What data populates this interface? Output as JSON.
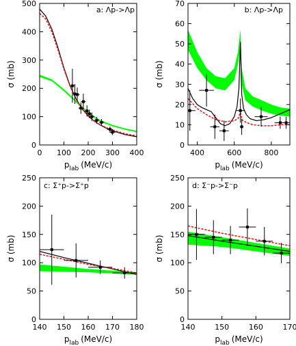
{
  "chart_data": [
    {
      "id": "a",
      "type": "line",
      "label": "a: Λp->Λp",
      "xlabel": "p",
      "xlabel_sub": "lab",
      "xlabel_unit": "(MeV/c)",
      "ylabel": "σ (mb)",
      "xlim": [
        0,
        400
      ],
      "ylim": [
        0,
        500
      ],
      "xticks": [
        0,
        100,
        200,
        300,
        400
      ],
      "yticks": [
        0,
        100,
        200,
        300,
        400,
        500
      ],
      "colors": {
        "band": "#00ff00",
        "model_solid": "#000000",
        "model_dashed": "#ff0000"
      },
      "band": {
        "x": [
          0,
          50,
          100,
          150,
          200,
          250,
          300,
          350,
          400
        ],
        "lower": [
          240,
          225,
          190,
          150,
          110,
          82,
          66,
          54,
          45
        ],
        "upper": [
          248,
          232,
          197,
          157,
          116,
          88,
          71,
          59,
          50
        ]
      },
      "curves": [
        {
          "style": "solid",
          "x": [
            0,
            25,
            50,
            75,
            100,
            125,
            150,
            175,
            200,
            225,
            250,
            275,
            300,
            350,
            400
          ],
          "y": [
            480,
            455,
            410,
            345,
            272,
            210,
            163,
            128,
            103,
            84,
            70,
            59,
            50,
            37,
            29
          ]
        },
        {
          "style": "dashed",
          "x": [
            0,
            25,
            50,
            75,
            100,
            125,
            150,
            175,
            200,
            225,
            250,
            275,
            300,
            350,
            400
          ],
          "y": [
            465,
            445,
            400,
            338,
            268,
            208,
            162,
            127,
            102,
            84,
            71,
            61,
            53,
            40,
            32
          ]
        }
      ],
      "points": [
        {
          "x": 135,
          "y": 209,
          "xerr": 10,
          "yerr": 60
        },
        {
          "x": 145,
          "y": 180,
          "xerr": 10,
          "yerr": 35
        },
        {
          "x": 155,
          "y": 178,
          "xerr": 10,
          "yerr": 25
        },
        {
          "x": 170,
          "y": 130,
          "xerr": 10,
          "yerr": 20
        },
        {
          "x": 180,
          "y": 153,
          "xerr": 10,
          "yerr": 28
        },
        {
          "x": 195,
          "y": 120,
          "xerr": 10,
          "yerr": 20
        },
        {
          "x": 205,
          "y": 110,
          "xerr": 10,
          "yerr": 15
        },
        {
          "x": 215,
          "y": 100,
          "xerr": 10,
          "yerr": 15
        },
        {
          "x": 235,
          "y": 87,
          "xerr": 10,
          "yerr": 12
        },
        {
          "x": 255,
          "y": 80,
          "xerr": 10,
          "yerr": 12
        },
        {
          "x": 290,
          "y": 55,
          "xerr": 12,
          "yerr": 10
        },
        {
          "x": 300,
          "y": 45,
          "xerr": 12,
          "yerr": 10
        }
      ]
    },
    {
      "id": "b",
      "type": "line",
      "label": "b: Λp->Λp",
      "xlabel": "p",
      "xlabel_sub": "lab",
      "xlabel_unit": "(MeV/c)",
      "ylabel": "σ (mb)",
      "xlim": [
        350,
        900
      ],
      "ylim": [
        0,
        70
      ],
      "xticks": [
        400,
        600,
        800
      ],
      "yticks": [
        0,
        10,
        20,
        30,
        40,
        50,
        60,
        70
      ],
      "colors": {
        "band": "#00ff00",
        "model_solid": "#000000",
        "model_dashed": "#ff0000"
      },
      "band": {
        "x": [
          350,
          400,
          450,
          500,
          550,
          600,
          620,
          633,
          640,
          660,
          700,
          750,
          800,
          850,
          900
        ],
        "lower": [
          47,
          38,
          32,
          28,
          27,
          32,
          40,
          48,
          30,
          22,
          19,
          17,
          15.5,
          14.5,
          14
        ],
        "upper": [
          57,
          46,
          38,
          34,
          33,
          38,
          46,
          57,
          38,
          28,
          24,
          22,
          20,
          18.5,
          18
        ]
      },
      "curves": [
        {
          "style": "solid",
          "x": [
            350,
            375,
            400,
            425,
            450,
            475,
            500,
            525,
            550,
            575,
            600,
            615,
            625,
            633,
            640,
            650,
            665,
            685,
            720,
            760,
            800,
            850,
            900
          ],
          "y": [
            28,
            23,
            20,
            18.5,
            17.5,
            16.5,
            13.5,
            10.5,
            9.5,
            10.5,
            14,
            19,
            28,
            51,
            25,
            18,
            15,
            13,
            12,
            12.5,
            13.5,
            15.5,
            17.5
          ]
        },
        {
          "style": "dashed",
          "x": [
            350,
            400,
            450,
            500,
            550,
            600,
            620,
            633,
            645,
            670,
            700,
            750,
            800,
            850,
            900
          ],
          "y": [
            23,
            18,
            15,
            12.5,
            11.5,
            12,
            13,
            16,
            12,
            11,
            10,
            9.5,
            9.5,
            10,
            10
          ]
        }
      ],
      "points": [
        {
          "x": 360,
          "y": 17,
          "xerr": 30,
          "yerr": 10
        },
        {
          "x": 450,
          "y": 27,
          "xerr": 40,
          "yerr": 8
        },
        {
          "x": 495,
          "y": 9,
          "xerr": 25,
          "yerr": 6
        },
        {
          "x": 545,
          "y": 7,
          "xerr": 25,
          "yerr": 5
        },
        {
          "x": 633,
          "y": 17,
          "xerr": 25,
          "yerr": 6
        },
        {
          "x": 640,
          "y": 9,
          "xerr": 10,
          "yerr": 4
        },
        {
          "x": 745,
          "y": 14,
          "xerr": 35,
          "yerr": 5
        },
        {
          "x": 848,
          "y": 11,
          "xerr": 30,
          "yerr": 3
        },
        {
          "x": 880,
          "y": 11,
          "xerr": 20,
          "yerr": 3
        }
      ]
    },
    {
      "id": "c",
      "type": "line",
      "label": "c: Σ⁺p->Σ⁺p",
      "xlabel": "p",
      "xlabel_sub": "lab",
      "xlabel_unit": "(MeV/c)",
      "ylabel": "σ (mb)",
      "xlim": [
        140,
        180
      ],
      "ylim": [
        0,
        250
      ],
      "xticks": [
        140,
        150,
        160,
        170,
        180
      ],
      "yticks": [
        0,
        50,
        100,
        150,
        200,
        250
      ],
      "colors": {
        "band": "#00ff00",
        "model_solid": "#000000",
        "model_dashed": "#ff0000"
      },
      "band": {
        "x": [
          140,
          150,
          160,
          170,
          180
        ],
        "lower": [
          85,
          84,
          83,
          81,
          79
        ],
        "upper": [
          97,
          93,
          89,
          86,
          83
        ]
      },
      "curves": [
        {
          "style": "solid",
          "x": [
            140,
            150,
            160,
            170,
            180
          ],
          "y": [
            120,
            109,
            99,
            89,
            79
          ]
        },
        {
          "style": "dashed",
          "x": [
            140,
            150,
            160,
            170,
            180
          ],
          "y": [
            115,
            106,
            97,
            90,
            82
          ]
        }
      ],
      "points": [
        {
          "x": 145,
          "y": 123,
          "xerr": 5,
          "yerr": 62
        },
        {
          "x": 155,
          "y": 104,
          "xerr": 5,
          "yerr": 30
        },
        {
          "x": 165,
          "y": 92,
          "xerr": 5,
          "yerr": 12
        },
        {
          "x": 175,
          "y": 82,
          "xerr": 5,
          "yerr": 10
        }
      ]
    },
    {
      "id": "d",
      "type": "line",
      "label": "d: Σ⁻p->Σ⁻p",
      "xlabel": "p",
      "xlabel_sub": "lab",
      "xlabel_unit": "(MeV/c)",
      "ylabel": "σ (mb)",
      "xlim": [
        140,
        170
      ],
      "ylim": [
        0,
        250
      ],
      "xticks": [
        140,
        150,
        160,
        170
      ],
      "yticks": [
        0,
        50,
        100,
        150,
        200,
        250
      ],
      "colors": {
        "band": "#00ff00",
        "model_solid": "#000000",
        "model_dashed": "#ff0000"
      },
      "band": {
        "x": [
          140,
          150,
          160,
          170
        ],
        "lower": [
          132,
          128,
          120,
          112
        ],
        "upper": [
          155,
          145,
          135,
          125
        ]
      },
      "curves": [
        {
          "style": "solid",
          "x": [
            140,
            150,
            160,
            170
          ],
          "y": [
            148,
            138,
            129,
            120
          ]
        },
        {
          "style": "dashed",
          "x": [
            140,
            150,
            160,
            170
          ],
          "y": [
            165,
            152,
            141,
            130
          ]
        }
      ],
      "points": [
        {
          "x": 142.5,
          "y": 150,
          "xerr": 2.5,
          "yerr": 45
        },
        {
          "x": 147.5,
          "y": 145,
          "xerr": 2.5,
          "yerr": 30
        },
        {
          "x": 152.5,
          "y": 140,
          "xerr": 2.5,
          "yerr": 25
        },
        {
          "x": 157.5,
          "y": 163,
          "xerr": 2.5,
          "yerr": 33
        },
        {
          "x": 162.5,
          "y": 138,
          "xerr": 2.5,
          "yerr": 25
        },
        {
          "x": 167.5,
          "y": 117,
          "xerr": 2.5,
          "yerr": 18
        }
      ]
    }
  ]
}
